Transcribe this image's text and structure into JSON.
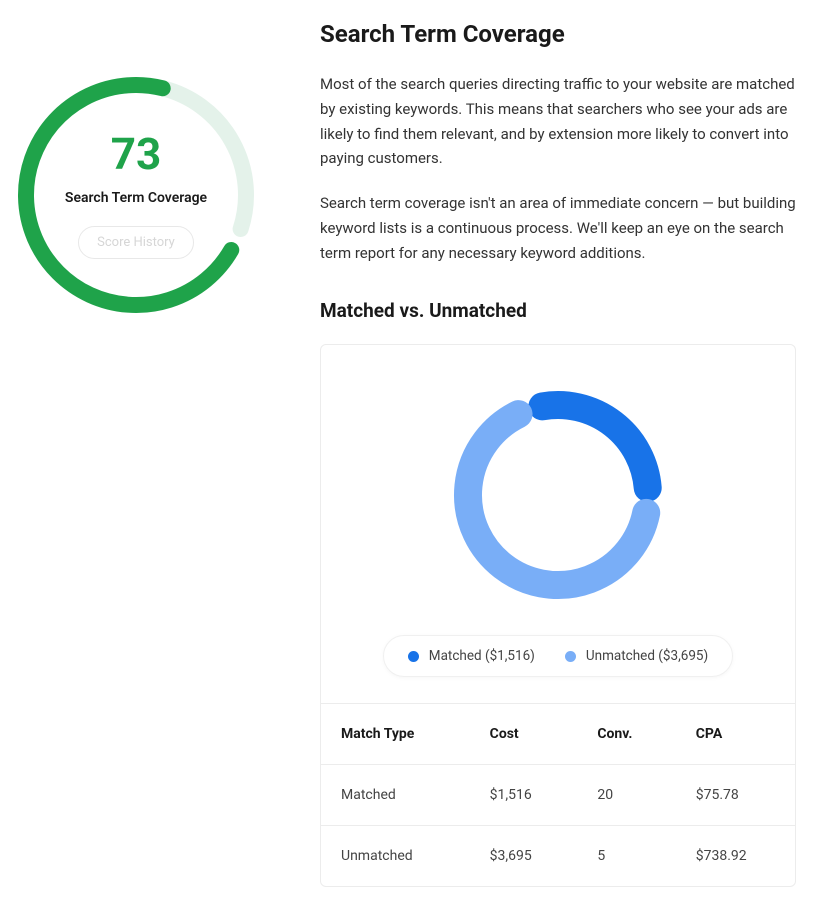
{
  "page": {
    "title": "Search Term Coverage",
    "paragraphs": [
      "Most of the search queries directing traffic to your website are matched by existing keywords. This means that searchers who see your ads are likely to find them relevant, and by extension more likely to convert into paying customers.",
      "Search term coverage isn't an area of immediate concern — but building keyword lists is a continuous process. We'll keep an eye on the search term report for any necessary keyword additions."
    ]
  },
  "gauge": {
    "score": 73,
    "max": 100,
    "label": "Search Term Coverage",
    "button_label": "Score History",
    "stroke_width": 16,
    "radius": 110,
    "fg_color": "#1fa34a",
    "bg_color": "#e4f2ea",
    "score_color": "#1fa34a",
    "label_color": "#1a1a1a",
    "start_angle_deg": 120,
    "gap_deg": 12
  },
  "matched_section": {
    "title": "Matched vs. Unmatched",
    "donut": {
      "type": "donut",
      "stroke_width": 28,
      "radius": 90,
      "gap_deg": 16,
      "start_angle_deg": -10,
      "background_color": "#ffffff",
      "slices": [
        {
          "key": "matched",
          "label": "Matched ($1,516)",
          "value": 1516,
          "color": "#1873e8"
        },
        {
          "key": "unmatched",
          "label": "Unmatched ($3,695)",
          "value": 3695,
          "color": "#79aef7"
        }
      ]
    },
    "table": {
      "columns": [
        "Match Type",
        "Cost",
        "Conv.",
        "CPA"
      ],
      "rows": [
        [
          "Matched",
          "$1,516",
          "20",
          "$75.78"
        ],
        [
          "Unmatched",
          "$3,695",
          "5",
          "$738.92"
        ]
      ]
    }
  }
}
